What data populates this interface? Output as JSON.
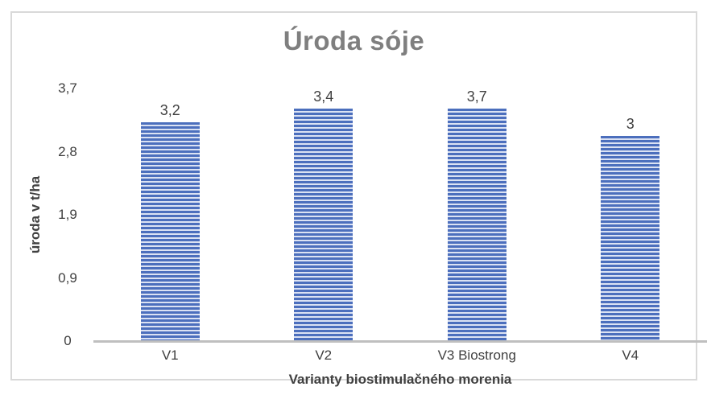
{
  "chart_data": {
    "type": "bar",
    "title": "Úroda sóje",
    "categories": [
      "V1",
      "V2",
      "V3 Biostrong",
      "V4"
    ],
    "values": [
      3.2,
      3.4,
      3.7,
      3
    ],
    "value_labels": [
      "3,2",
      "3,4",
      "3,7",
      "3"
    ],
    "xlabel": "Varianty biostimulačného morenia",
    "ylabel": "úroda v t/ha",
    "ylim": [
      0,
      3.7
    ],
    "ytick_labels": [
      "0",
      "0,9",
      "1,9",
      "2,8",
      "3,7"
    ],
    "grid": false,
    "legend": false,
    "bar_pattern": "horizontal-stripes",
    "colors": {
      "bar_stripe_dark": "#4c6fbd",
      "bar_stripe_light": "#dbe2f3",
      "title_text": "#7f7f7f",
      "axis_text": "#404040",
      "axis_line": "#bfbfbf",
      "frame_border": "#d9d9d9"
    }
  }
}
